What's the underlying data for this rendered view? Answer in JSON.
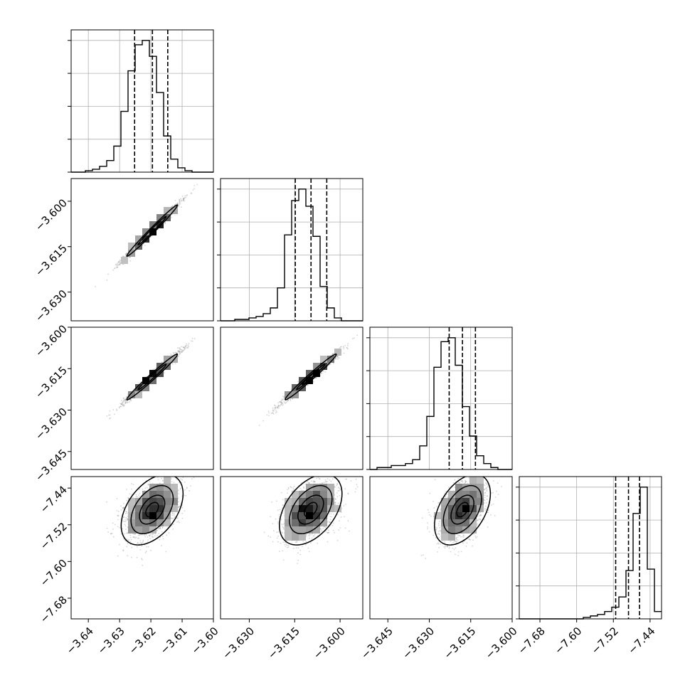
{
  "colors": {
    "frame": "#000000",
    "grid": "#b0b0b0",
    "background": "#ffffff"
  },
  "chart_data": {
    "type": "scatter",
    "subtype": "corner",
    "grid": true,
    "params": [
      {
        "range": [
          -3.6455,
          -3.6
        ],
        "ticks": [
          -3.64,
          -3.63,
          -3.62,
          -3.61,
          -3.6
        ],
        "tick_labels": [
          "−3.64",
          "−3.63",
          "−3.62",
          "−3.61",
          "−3.60"
        ],
        "quantiles": [
          -3.6252,
          -3.6195,
          -3.6146
        ]
      },
      {
        "range": [
          -3.6395,
          -3.5925
        ],
        "ticks": [
          -3.63,
          -3.615,
          -3.6
        ],
        "tick_labels": [
          "−3.630",
          "−3.615",
          "−3.600"
        ],
        "quantiles": [
          -3.6148,
          -3.6096,
          -3.6044
        ]
      },
      {
        "range": [
          -3.6515,
          -3.6
        ],
        "ticks": [
          -3.645,
          -3.63,
          -3.615,
          -3.6
        ],
        "tick_labels": [
          "−3.645",
          "−3.630",
          "−3.615",
          "−3.600"
        ],
        "quantiles": [
          -3.6228,
          -3.618,
          -3.6133
        ]
      },
      {
        "range": [
          -7.725,
          -7.415
        ],
        "ticks": [
          -7.68,
          -7.6,
          -7.52,
          -7.44
        ],
        "tick_labels": [
          "−7.68",
          "−7.60",
          "−7.52",
          "−7.44"
        ],
        "quantiles": [
          -7.515,
          -7.487,
          -7.463
        ]
      }
    ],
    "histograms": [
      {
        "counts": [
          0,
          0,
          1,
          2,
          4,
          8,
          18,
          42,
          70,
          88,
          91,
          80,
          55,
          25,
          9,
          3,
          1,
          0,
          0,
          0
        ]
      },
      {
        "counts": [
          0,
          0,
          1,
          1,
          2,
          3,
          5,
          9,
          23,
          60,
          84,
          92,
          80,
          59,
          24,
          9,
          2,
          0,
          0,
          0
        ]
      },
      {
        "counts": [
          0,
          1,
          1,
          2,
          2,
          3,
          5,
          12,
          27,
          52,
          65,
          67,
          53,
          32,
          17,
          7,
          3,
          1,
          0,
          0
        ]
      },
      {
        "counts": [
          0,
          0,
          0,
          0,
          0,
          0,
          0,
          0,
          0,
          1,
          2,
          3,
          5,
          8,
          15,
          33,
          72,
          90,
          34,
          5
        ]
      }
    ],
    "pairs": [
      {
        "x_param": 0,
        "y_param": 1,
        "center": [
          -3.6196,
          -3.6097
        ],
        "sd": [
          0.0045,
          0.0047
        ],
        "corr": 0.99,
        "contour_radii": [
          1.0,
          1.8
        ]
      },
      {
        "x_param": 0,
        "y_param": 2,
        "center": [
          -3.6196,
          -3.618
        ],
        "sd": [
          0.0045,
          0.0046
        ],
        "corr": 0.985,
        "contour_radii": [
          1.0,
          1.8
        ]
      },
      {
        "x_param": 1,
        "y_param": 2,
        "center": [
          -3.6097,
          -3.618
        ],
        "sd": [
          0.0047,
          0.0046
        ],
        "corr": 0.985,
        "contour_radii": [
          0.6,
          1.0,
          1.8
        ]
      },
      {
        "x_param": 0,
        "y_param": 3,
        "center": [
          -3.6196,
          -7.487
        ],
        "sd": [
          0.0045,
          0.035
        ],
        "corr": 0.45,
        "contour_radii": [
          0.45,
          0.9,
          1.5,
          2.2
        ]
      },
      {
        "x_param": 1,
        "y_param": 3,
        "center": [
          -3.6097,
          -7.487
        ],
        "sd": [
          0.0047,
          0.035
        ],
        "corr": 0.45,
        "contour_radii": [
          0.45,
          0.9,
          1.5,
          2.2
        ]
      },
      {
        "x_param": 2,
        "y_param": 3,
        "center": [
          -3.618,
          -7.487
        ],
        "sd": [
          0.0046,
          0.035
        ],
        "corr": 0.45,
        "contour_radii": [
          0.45,
          0.9,
          1.5,
          2.2
        ]
      }
    ]
  }
}
